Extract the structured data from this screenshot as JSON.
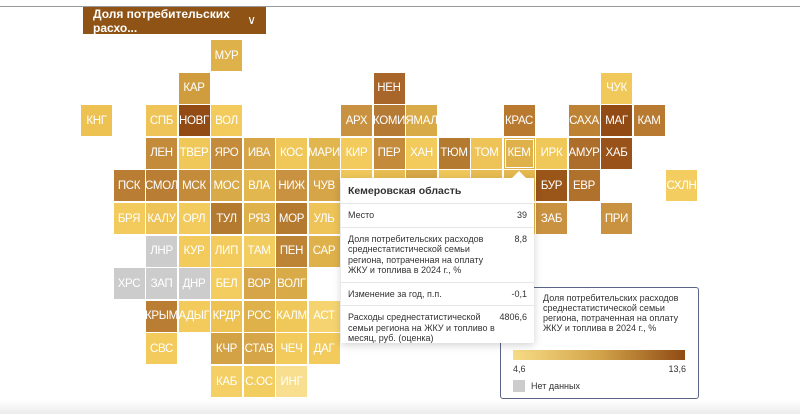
{
  "dropdown": {
    "label": "Доля потребительских расхо...",
    "icon": "chevron-down-icon"
  },
  "colors": {
    "dropdown": "#8f5316",
    "no_data": "#cccccc",
    "scale_low": "#f7dc86",
    "scale_high": "#8f4a14"
  },
  "regions": [
    {
      "abbr": "МУР",
      "color": "#deb14a"
    },
    {
      "abbr": "КАР",
      "color": "#cf9c3e"
    },
    {
      "abbr": "НЕН",
      "color": "#a8662a"
    },
    {
      "abbr": "ЧУК",
      "color": "#f0c95a"
    },
    {
      "abbr": "КНГ",
      "color": "#edc253"
    },
    {
      "abbr": "СПБ",
      "color": "#eec458"
    },
    {
      "abbr": "НОВГ",
      "color": "#924b15"
    },
    {
      "abbr": "ВОЛ",
      "color": "#f2cb5c"
    },
    {
      "abbr": "АРХ",
      "color": "#c99240"
    },
    {
      "abbr": "КОМИ",
      "color": "#b57a33"
    },
    {
      "abbr": "ЯМАЛ",
      "color": "#d9aa48"
    },
    {
      "abbr": "КРАС",
      "color": "#b9792f"
    },
    {
      "abbr": "САХА",
      "color": "#bd8234"
    },
    {
      "abbr": "МАГ",
      "color": "#924b15"
    },
    {
      "abbr": "КАМ",
      "color": "#b77a30"
    },
    {
      "abbr": "ЛЕН",
      "color": "#c48c3a"
    },
    {
      "abbr": "ТВЕР",
      "color": "#f0c85a"
    },
    {
      "abbr": "ЯРО",
      "color": "#c48c3a"
    },
    {
      "abbr": "ИВА",
      "color": "#d6a548"
    },
    {
      "abbr": "КОС",
      "color": "#f0c85a"
    },
    {
      "abbr": "МАРИ",
      "color": "#e2b64f"
    },
    {
      "abbr": "КИР",
      "color": "#f2cb5c"
    },
    {
      "abbr": "ПЕР",
      "color": "#c48c3a"
    },
    {
      "abbr": "ХАН",
      "color": "#f2cb5c"
    },
    {
      "abbr": "ТЮМ",
      "color": "#b47a30"
    },
    {
      "abbr": "ТОМ",
      "color": "#eec458"
    },
    {
      "abbr": "КЕМ",
      "color": "#deb14a"
    },
    {
      "abbr": "ИРК",
      "color": "#f0c85a"
    },
    {
      "abbr": "АМУР",
      "color": "#ad6e2b"
    },
    {
      "abbr": "ХАБ",
      "color": "#98521a"
    },
    {
      "abbr": "ПСК",
      "color": "#b97e33"
    },
    {
      "abbr": "СМОЛ",
      "color": "#b97e33"
    },
    {
      "abbr": "МСК",
      "color": "#c48c3a"
    },
    {
      "abbr": "МОС",
      "color": "#d9aa48"
    },
    {
      "abbr": "ВЛА",
      "color": "#e3b74f"
    },
    {
      "abbr": "НИЖ",
      "color": "#c99240"
    },
    {
      "abbr": "ЧУВ",
      "color": "#d6a548"
    },
    {
      "abbr": "",
      "color": "#f0c85a"
    },
    {
      "abbr": "",
      "color": "#e8bd52"
    },
    {
      "abbr": "",
      "color": "#d8a948"
    },
    {
      "abbr": "",
      "color": "#f0c85a"
    },
    {
      "abbr": "",
      "color": "#e8bd52"
    },
    {
      "abbr": "",
      "color": "#e5b950"
    },
    {
      "abbr": "БУР",
      "color": "#9a5519"
    },
    {
      "abbr": "ЕВР",
      "color": "#b0712d"
    },
    {
      "abbr": "СХЛН",
      "color": "#f3cd60"
    },
    {
      "abbr": "БРЯ",
      "color": "#f2cb5c"
    },
    {
      "abbr": "КАЛУ",
      "color": "#eec458"
    },
    {
      "abbr": "ОРЛ",
      "color": "#f2cb5c"
    },
    {
      "abbr": "ТУЛ",
      "color": "#b47a30"
    },
    {
      "abbr": "РЯЗ",
      "color": "#deb14a"
    },
    {
      "abbr": "МОР",
      "color": "#b47a30"
    },
    {
      "abbr": "УЛЬ",
      "color": "#eec458"
    },
    {
      "abbr": "",
      "color": "#e8bd52"
    },
    {
      "abbr": "",
      "color": "#d8a948"
    },
    {
      "abbr": "",
      "color": "#f0c85a"
    },
    {
      "abbr": "",
      "color": "#e8bd52"
    },
    {
      "abbr": "",
      "color": "#f0c85a"
    },
    {
      "abbr": "",
      "color": "#e5b950"
    },
    {
      "abbr": "ЗАБ",
      "color": "#c99240"
    },
    {
      "abbr": "ПРИ",
      "color": "#c99240"
    },
    {
      "abbr": "ЛНР",
      "color": "#cccccc"
    },
    {
      "abbr": "КУР",
      "color": "#f2cb5c"
    },
    {
      "abbr": "ЛИП",
      "color": "#f2cb5c"
    },
    {
      "abbr": "ТАМ",
      "color": "#f2cd60"
    },
    {
      "abbr": "ПЕН",
      "color": "#bd8436"
    },
    {
      "abbr": "САР",
      "color": "#deb14a"
    },
    {
      "abbr": "ХРС",
      "color": "#cccccc"
    },
    {
      "abbr": "ЗАП",
      "color": "#cccccc"
    },
    {
      "abbr": "ДНР",
      "color": "#cccccc"
    },
    {
      "abbr": "БЕЛ",
      "color": "#f3cd60"
    },
    {
      "abbr": "ВОР",
      "color": "#d6a548"
    },
    {
      "abbr": "ВОЛГ",
      "color": "#d9aa48"
    },
    {
      "abbr": "КРЫМ",
      "color": "#b97e33"
    },
    {
      "abbr": "АДЫГ",
      "color": "#f2cb5c"
    },
    {
      "abbr": "КРДР",
      "color": "#edc253"
    },
    {
      "abbr": "РОС",
      "color": "#deb14a"
    },
    {
      "abbr": "КАЛМ",
      "color": "#f0c85a"
    },
    {
      "abbr": "АСТ",
      "color": "#f5d470"
    },
    {
      "abbr": "СВС",
      "color": "#f2cb5c"
    },
    {
      "abbr": "КЧР",
      "color": "#d3a244"
    },
    {
      "abbr": "СТАВ",
      "color": "#d6a548"
    },
    {
      "abbr": "ЧЕЧ",
      "color": "#f2cb5c"
    },
    {
      "abbr": "ДАГ",
      "color": "#f2cb5c"
    },
    {
      "abbr": "КАБ",
      "color": "#f3cf66"
    },
    {
      "abbr": "С.ОС",
      "color": "#f2cd60"
    },
    {
      "abbr": "ИНГ",
      "color": "#f8df90"
    }
  ],
  "tooltip": {
    "title": "Кемеровская область",
    "rows": [
      {
        "label": "Место",
        "value": "39"
      },
      {
        "label": "Доля потребительских расходов среднестатистической семьи региона, потраченная на оплату ЖКУ и топлива в 2024 г., %",
        "value": "8,8"
      },
      {
        "label": "Изменение за год, п.п.",
        "value": "-0,1"
      },
      {
        "label": "Расходы среднестатистической семьи региона на ЖКУ и топливо в месяц, руб. (оценка)",
        "value": "4806,6"
      }
    ]
  },
  "legend": {
    "title": "Доля потребительских расходов среднестатистической семьи региона, потраченная на оплату ЖКУ и топлива в 2024 г., %",
    "min": "4,6",
    "max": "13,6",
    "no_data": "Нет данных"
  }
}
